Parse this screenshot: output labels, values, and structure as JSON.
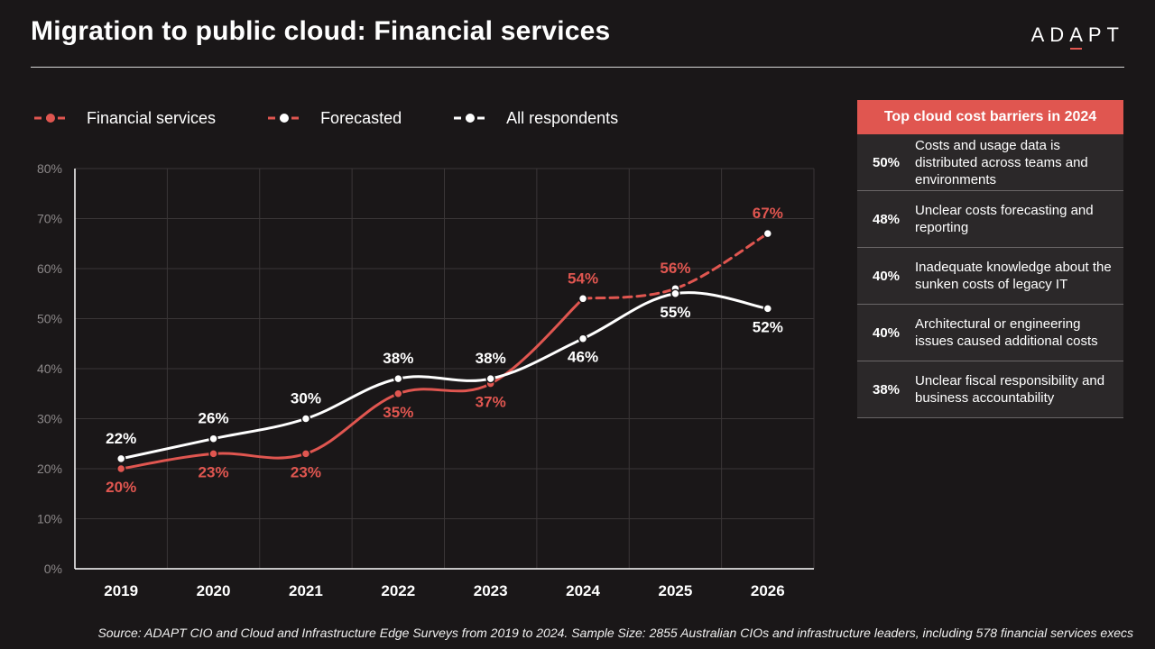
{
  "header": {
    "title": "Migration to public cloud: Financial services",
    "logo_text": "ADAPT"
  },
  "legend": [
    {
      "label": "Financial services",
      "color": "#e05650",
      "style": "solid"
    },
    {
      "label": "Forecasted",
      "color": "#e05650",
      "style": "dashed"
    },
    {
      "label": "All respondents",
      "color": "#ffffff",
      "style": "solid"
    }
  ],
  "chart_data": {
    "type": "line",
    "categories": [
      "2019",
      "2020",
      "2021",
      "2022",
      "2023",
      "2024",
      "2025",
      "2026"
    ],
    "ylim": [
      0,
      80
    ],
    "yticks": [
      0,
      10,
      20,
      30,
      40,
      50,
      60,
      70,
      80
    ],
    "ytick_labels": [
      "0%",
      "10%",
      "20%",
      "30%",
      "40%",
      "50%",
      "60%",
      "70%",
      "80%"
    ],
    "grid": true,
    "legend_position": "top-left",
    "series": [
      {
        "name": "Financial services",
        "values": [
          20,
          23,
          23,
          35,
          37,
          54,
          null,
          null
        ],
        "labels": [
          "20%",
          "23%",
          "23%",
          "35%",
          "37%",
          "54%",
          "",
          ""
        ],
        "color": "#e05650",
        "style": "solid"
      },
      {
        "name": "Forecasted",
        "values": [
          null,
          null,
          null,
          null,
          null,
          54,
          56,
          67
        ],
        "labels": [
          "",
          "",
          "",
          "",
          "",
          "",
          "56%",
          "67%"
        ],
        "color": "#e05650",
        "style": "dashed"
      },
      {
        "name": "All respondents",
        "values": [
          22,
          26,
          30,
          38,
          38,
          46,
          55,
          52
        ],
        "labels": [
          "22%",
          "26%",
          "30%",
          "38%",
          "38%",
          "46%",
          "55%",
          "52%"
        ],
        "color": "#ffffff",
        "style": "solid"
      }
    ]
  },
  "barriers": {
    "title": "Top cloud cost barriers in 2024",
    "items": [
      {
        "pct": "50%",
        "text": "Costs and usage data is distributed across teams and environments"
      },
      {
        "pct": "48%",
        "text": "Unclear costs forecasting and reporting"
      },
      {
        "pct": "40%",
        "text": "Inadequate knowledge about the sunken costs of legacy IT"
      },
      {
        "pct": "40%",
        "text": "Architectural or engineering issues caused additional costs"
      },
      {
        "pct": "38%",
        "text": "Unclear fiscal responsibility and business accountability"
      }
    ]
  },
  "footer": {
    "source": "Source: ADAPT CIO and Cloud and Infrastructure Edge Surveys from 2019 to 2024. Sample Size: 2855 Australian CIOs and infrastructure leaders, including 578 financial services execs"
  }
}
